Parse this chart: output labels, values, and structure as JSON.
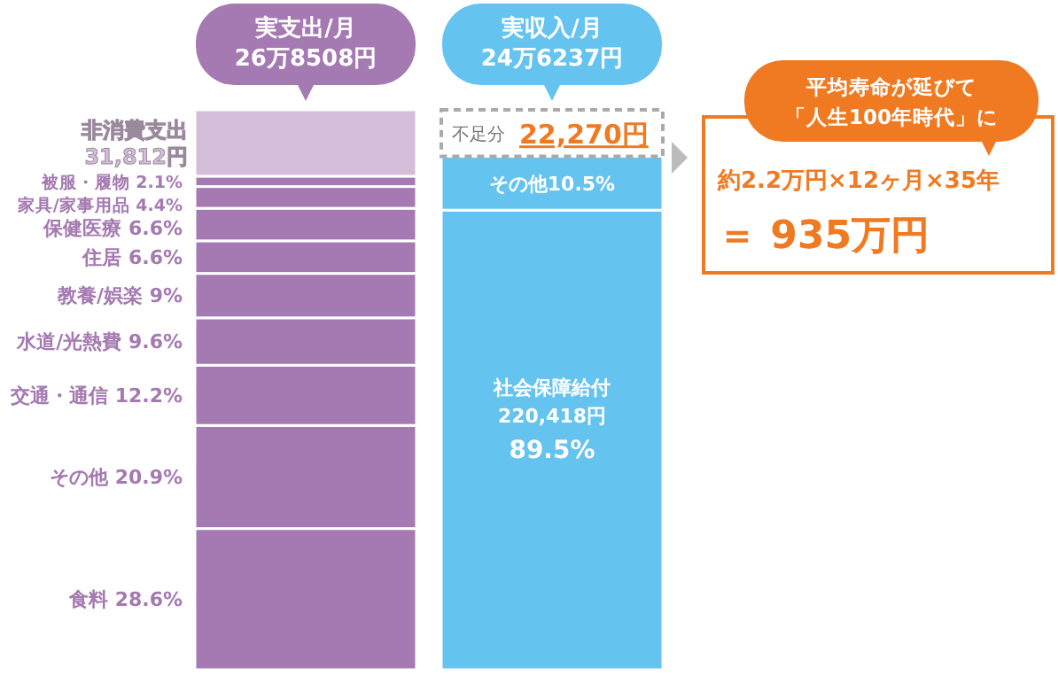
{
  "chart_data": {
    "type": "bar",
    "stacked": true,
    "categories": [
      "実支出/月\n26万8508円",
      "実収入/月\n24万6237円"
    ],
    "series": [
      {
        "name": "食料 28.6%",
        "color": "#a57ab2",
        "values": [
          67695,
          null
        ]
      },
      {
        "name": "その他 20.9%",
        "color": "#a57ab2",
        "values": [
          49469,
          null
        ]
      },
      {
        "name": "交通・通信 12.2%",
        "color": "#a57ab2",
        "values": [
          28877,
          null
        ]
      },
      {
        "name": "水道/光熱費 9.6%",
        "color": "#a57ab2",
        "values": [
          22723,
          null
        ]
      },
      {
        "name": "教養/娯楽 9%",
        "color": "#a57ab2",
        "values": [
          21303,
          null
        ]
      },
      {
        "name": "住居 6.6%",
        "color": "#a57ab2",
        "values": [
          15622,
          null
        ]
      },
      {
        "name": "保健医療 6.6%",
        "color": "#a57ab2",
        "values": [
          15622,
          null
        ]
      },
      {
        "name": "家具/家事用品 4.4%",
        "color": "#a57ab2",
        "values": [
          10415,
          null
        ]
      },
      {
        "name": "被服・履物 2.1%",
        "color": "#a57ab2",
        "values": [
          4971,
          null
        ]
      },
      {
        "name": "非消費支出",
        "color": "#d4bdd9",
        "values": [
          31812,
          null
        ]
      },
      {
        "name": "社会保障給付",
        "color": "#65c3f0",
        "values": [
          null,
          220418
        ],
        "value_labels": [
          null,
          "220,418円"
        ]
      },
      {
        "name": "その他10.5%",
        "color": "#65c3f0",
        "values": [
          null,
          25819
        ]
      },
      {
        "name": "不足分",
        "color": "#ffffff",
        "line_style": "dashed",
        "values": [
          null,
          22270
        ],
        "value_labels": [
          null,
          "22,270円"
        ]
      }
    ],
    "annotations": [
      "89.5%",
      "31,812円",
      "平均寿命が延びて",
      "「人生100年時代」に",
      "約2.2万円×12ヶ月×35年",
      "＝ 935万円"
    ]
  }
}
